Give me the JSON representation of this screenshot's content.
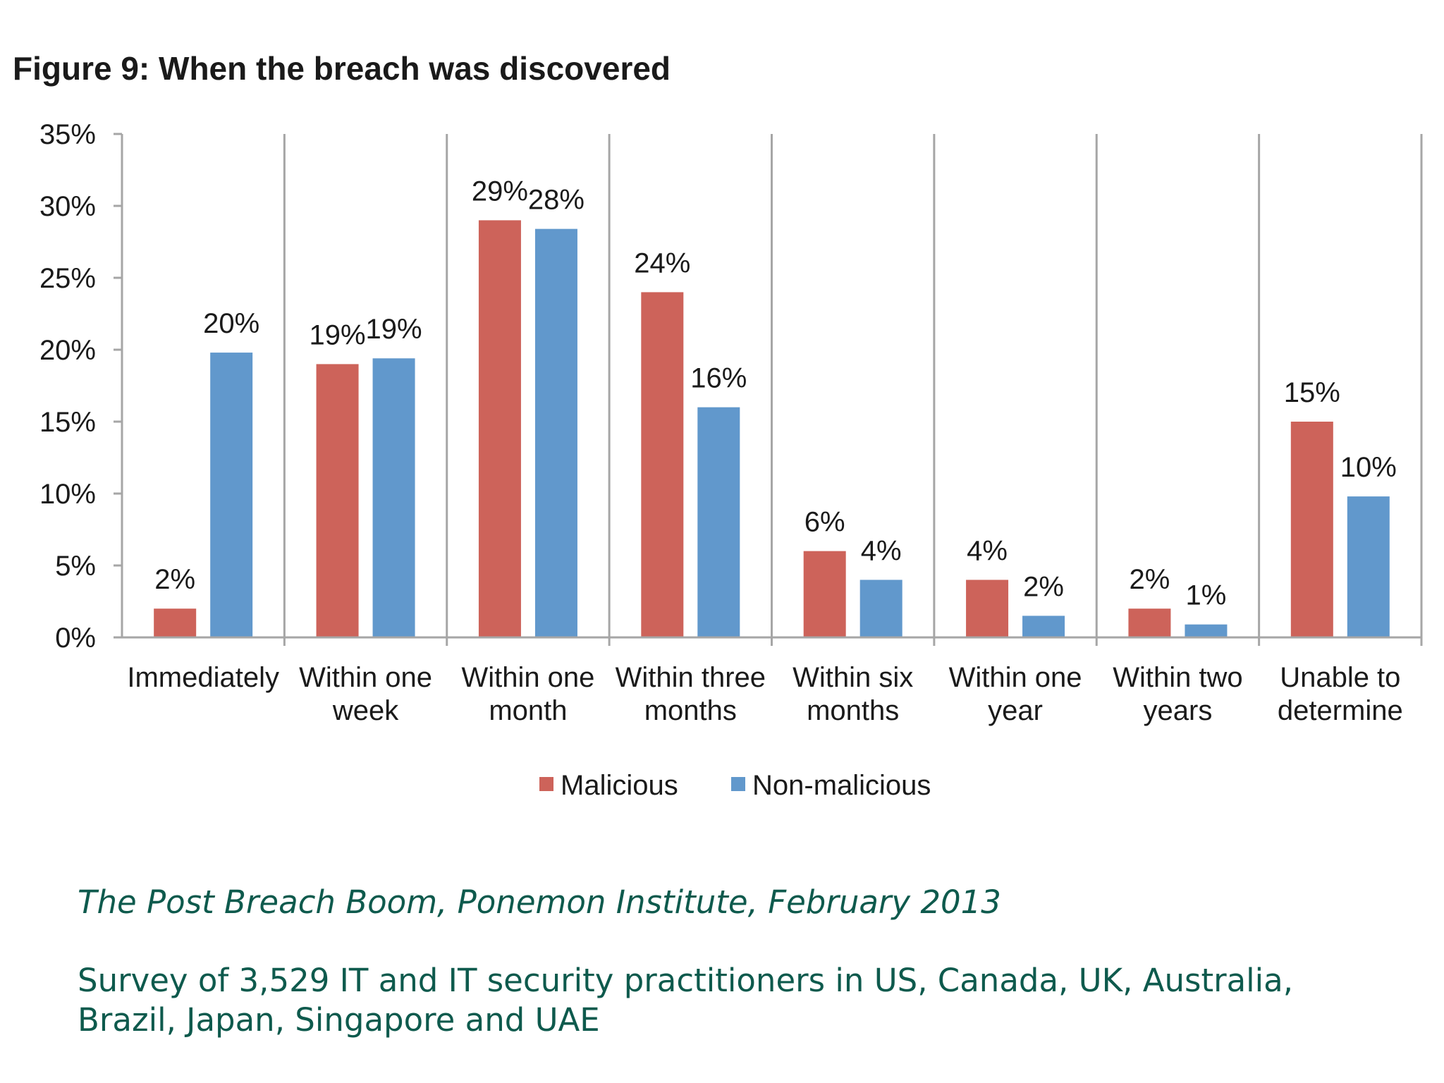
{
  "chart_data": {
    "type": "bar",
    "title": "Figure 9: When the breach was discovered",
    "categories": [
      [
        "Immediately"
      ],
      [
        "Within one",
        "week"
      ],
      [
        "Within one",
        "month"
      ],
      [
        "Within three",
        "months"
      ],
      [
        "Within six",
        "months"
      ],
      [
        "Within one",
        "year"
      ],
      [
        "Within two",
        "years"
      ],
      [
        "Unable to",
        "determine"
      ]
    ],
    "series": [
      {
        "name": "Malicious",
        "color": "#cd635a",
        "values": [
          0.02,
          0.19,
          0.29,
          0.24,
          0.06,
          0.04,
          0.02,
          0.15
        ],
        "labels": [
          "2%",
          "19%",
          "29%",
          "24%",
          "6%",
          "4%",
          "2%",
          "15%"
        ]
      },
      {
        "name": "Non-malicious",
        "color": "#6198cc",
        "values": [
          0.198,
          0.194,
          0.284,
          0.16,
          0.04,
          0.015,
          0.009,
          0.098
        ],
        "labels": [
          "20%",
          "19%",
          "28%",
          "16%",
          "4%",
          "2%",
          "1%",
          "10%"
        ]
      }
    ],
    "ylim": [
      0,
      0.35
    ],
    "yticks": [
      0,
      0.05,
      0.1,
      0.15,
      0.2,
      0.25,
      0.3,
      0.35
    ],
    "ytick_labels": [
      "0%",
      "5%",
      "10%",
      "15%",
      "20%",
      "25%",
      "30%",
      "35%"
    ],
    "xlabel": "",
    "ylabel": "",
    "grid": "vertical category separators",
    "legend": "bottom-center",
    "axis_color": "#a6a6a6"
  },
  "source": "The Post Breach Boom, Ponemon Institute, February 2013",
  "survey": [
    "Survey of 3,529 IT and IT security practitioners in US, Canada, UK, Australia,",
    "Brazil, Japan, Singapore and UAE"
  ]
}
